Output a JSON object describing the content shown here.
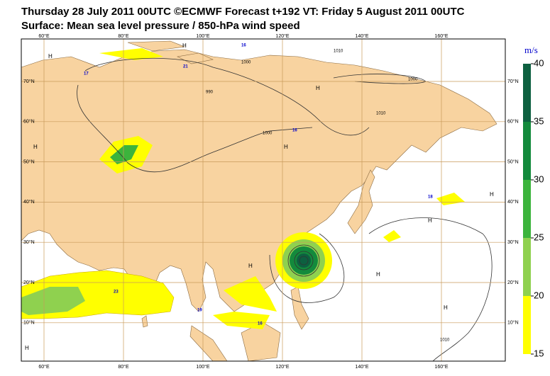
{
  "header": {
    "title": "Thursday 28 July 2011 00UTC ©ECMWF Forecast t+192 VT: Friday 5 August 2011 00UTC",
    "subtitle": "Surface: Mean sea level pressure / 850-hPa wind speed"
  },
  "map": {
    "lon_ticks": [
      {
        "value": 60,
        "label": "60°E"
      },
      {
        "value": 80,
        "label": "80°E"
      },
      {
        "value": 100,
        "label": "100°E"
      },
      {
        "value": 120,
        "label": "120°E"
      },
      {
        "value": 140,
        "label": "140°E"
      },
      {
        "value": 160,
        "label": "160°E"
      }
    ],
    "lat_ticks": [
      {
        "value": 70,
        "label": "70°N"
      },
      {
        "value": 60,
        "label": "60°N"
      },
      {
        "value": 50,
        "label": "50°N"
      },
      {
        "value": 40,
        "label": "40°N"
      },
      {
        "value": 30,
        "label": "30°N"
      },
      {
        "value": 20,
        "label": "20°N"
      },
      {
        "value": 10,
        "label": "10°N"
      }
    ],
    "grid_color": "#c89a5a"
  },
  "labels": {
    "highs": [
      "H",
      "H",
      "H",
      "H",
      "H",
      "H",
      "H",
      "H",
      "H",
      "H",
      "H"
    ],
    "isobars": [
      "1010",
      "1000",
      "990",
      "1000",
      "1000",
      "1010",
      "1010"
    ],
    "winds": [
      "16",
      "21",
      "17",
      "16",
      "18",
      "23",
      "19",
      "16"
    ]
  },
  "colorbar": {
    "unit": "m/s",
    "ticks": [
      15,
      20,
      25,
      30,
      35,
      40
    ],
    "colors": [
      "#ffff00",
      "#8fd14f",
      "#3cb43c",
      "#138a3c",
      "#0d6040"
    ]
  }
}
